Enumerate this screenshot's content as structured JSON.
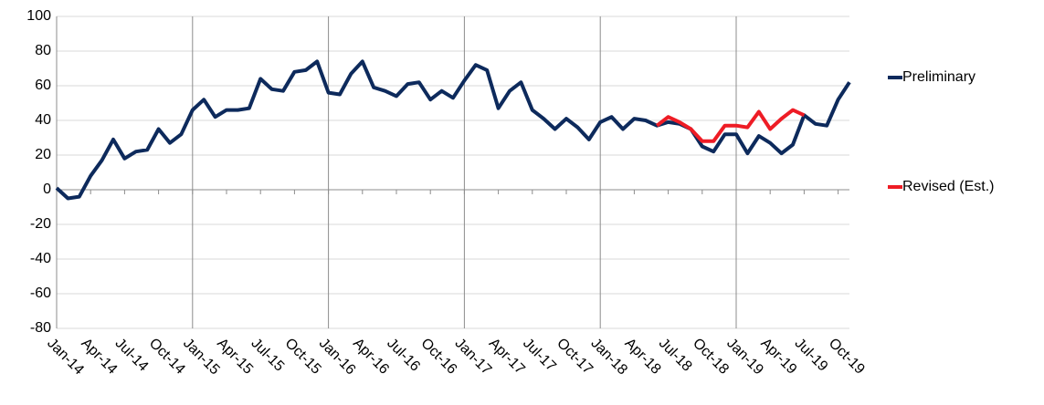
{
  "chart_data": {
    "type": "line",
    "categories": [
      "Jan-14",
      null,
      null,
      "Apr-14",
      null,
      null,
      "Jul-14",
      null,
      null,
      "Oct-14",
      null,
      null,
      "Jan-15",
      null,
      null,
      "Apr-15",
      null,
      null,
      "Jul-15",
      null,
      null,
      "Oct-15",
      null,
      null,
      "Jan-16",
      null,
      null,
      "Apr-16",
      null,
      null,
      "Jul-16",
      null,
      null,
      "Oct-16",
      null,
      null,
      "Jan-17",
      null,
      null,
      "Apr-17",
      null,
      null,
      "Jul-17",
      null,
      null,
      "Oct-17",
      null,
      null,
      "Jan-18",
      null,
      null,
      "Apr-18",
      null,
      null,
      "Jul-18",
      null,
      null,
      "Oct-18",
      null,
      null,
      "Jan-19",
      null,
      null,
      "Apr-19",
      null,
      null,
      "Jul-19",
      null,
      null,
      "Oct-19",
      null
    ],
    "series": [
      {
        "name": "Preliminary",
        "color": "#0d2a5c",
        "values": [
          1,
          -5,
          -4,
          8,
          17,
          29,
          18,
          22,
          23,
          35,
          27,
          32,
          46,
          52,
          42,
          46,
          46,
          47,
          64,
          58,
          57,
          68,
          69,
          74,
          56,
          55,
          67,
          74,
          59,
          57,
          54,
          61,
          62,
          52,
          57,
          53,
          63,
          72,
          69,
          47,
          57,
          62,
          46,
          41,
          35,
          41,
          36,
          29,
          39,
          42,
          35,
          41,
          40,
          37,
          39,
          38,
          35,
          25,
          22,
          32,
          32,
          21,
          31,
          27,
          21,
          26,
          43,
          38,
          37,
          52,
          62
        ]
      },
      {
        "name": "Revised (Est.)",
        "color": "#ee1c25",
        "values": [
          null,
          null,
          null,
          null,
          null,
          null,
          null,
          null,
          null,
          null,
          null,
          null,
          null,
          null,
          null,
          null,
          null,
          null,
          null,
          null,
          null,
          null,
          null,
          null,
          null,
          null,
          null,
          null,
          null,
          null,
          null,
          null,
          null,
          null,
          null,
          null,
          null,
          null,
          null,
          null,
          null,
          null,
          null,
          null,
          null,
          null,
          null,
          null,
          null,
          null,
          null,
          null,
          null,
          37,
          42,
          39,
          35,
          28,
          28,
          37,
          37,
          36,
          45,
          35,
          41,
          46,
          43,
          null,
          null,
          null,
          null
        ]
      }
    ],
    "ylim": [
      -80,
      100
    ],
    "yticks": [
      -80,
      -60,
      -40,
      -20,
      0,
      20,
      40,
      60,
      80,
      100
    ],
    "grid": true,
    "legend": "right"
  }
}
